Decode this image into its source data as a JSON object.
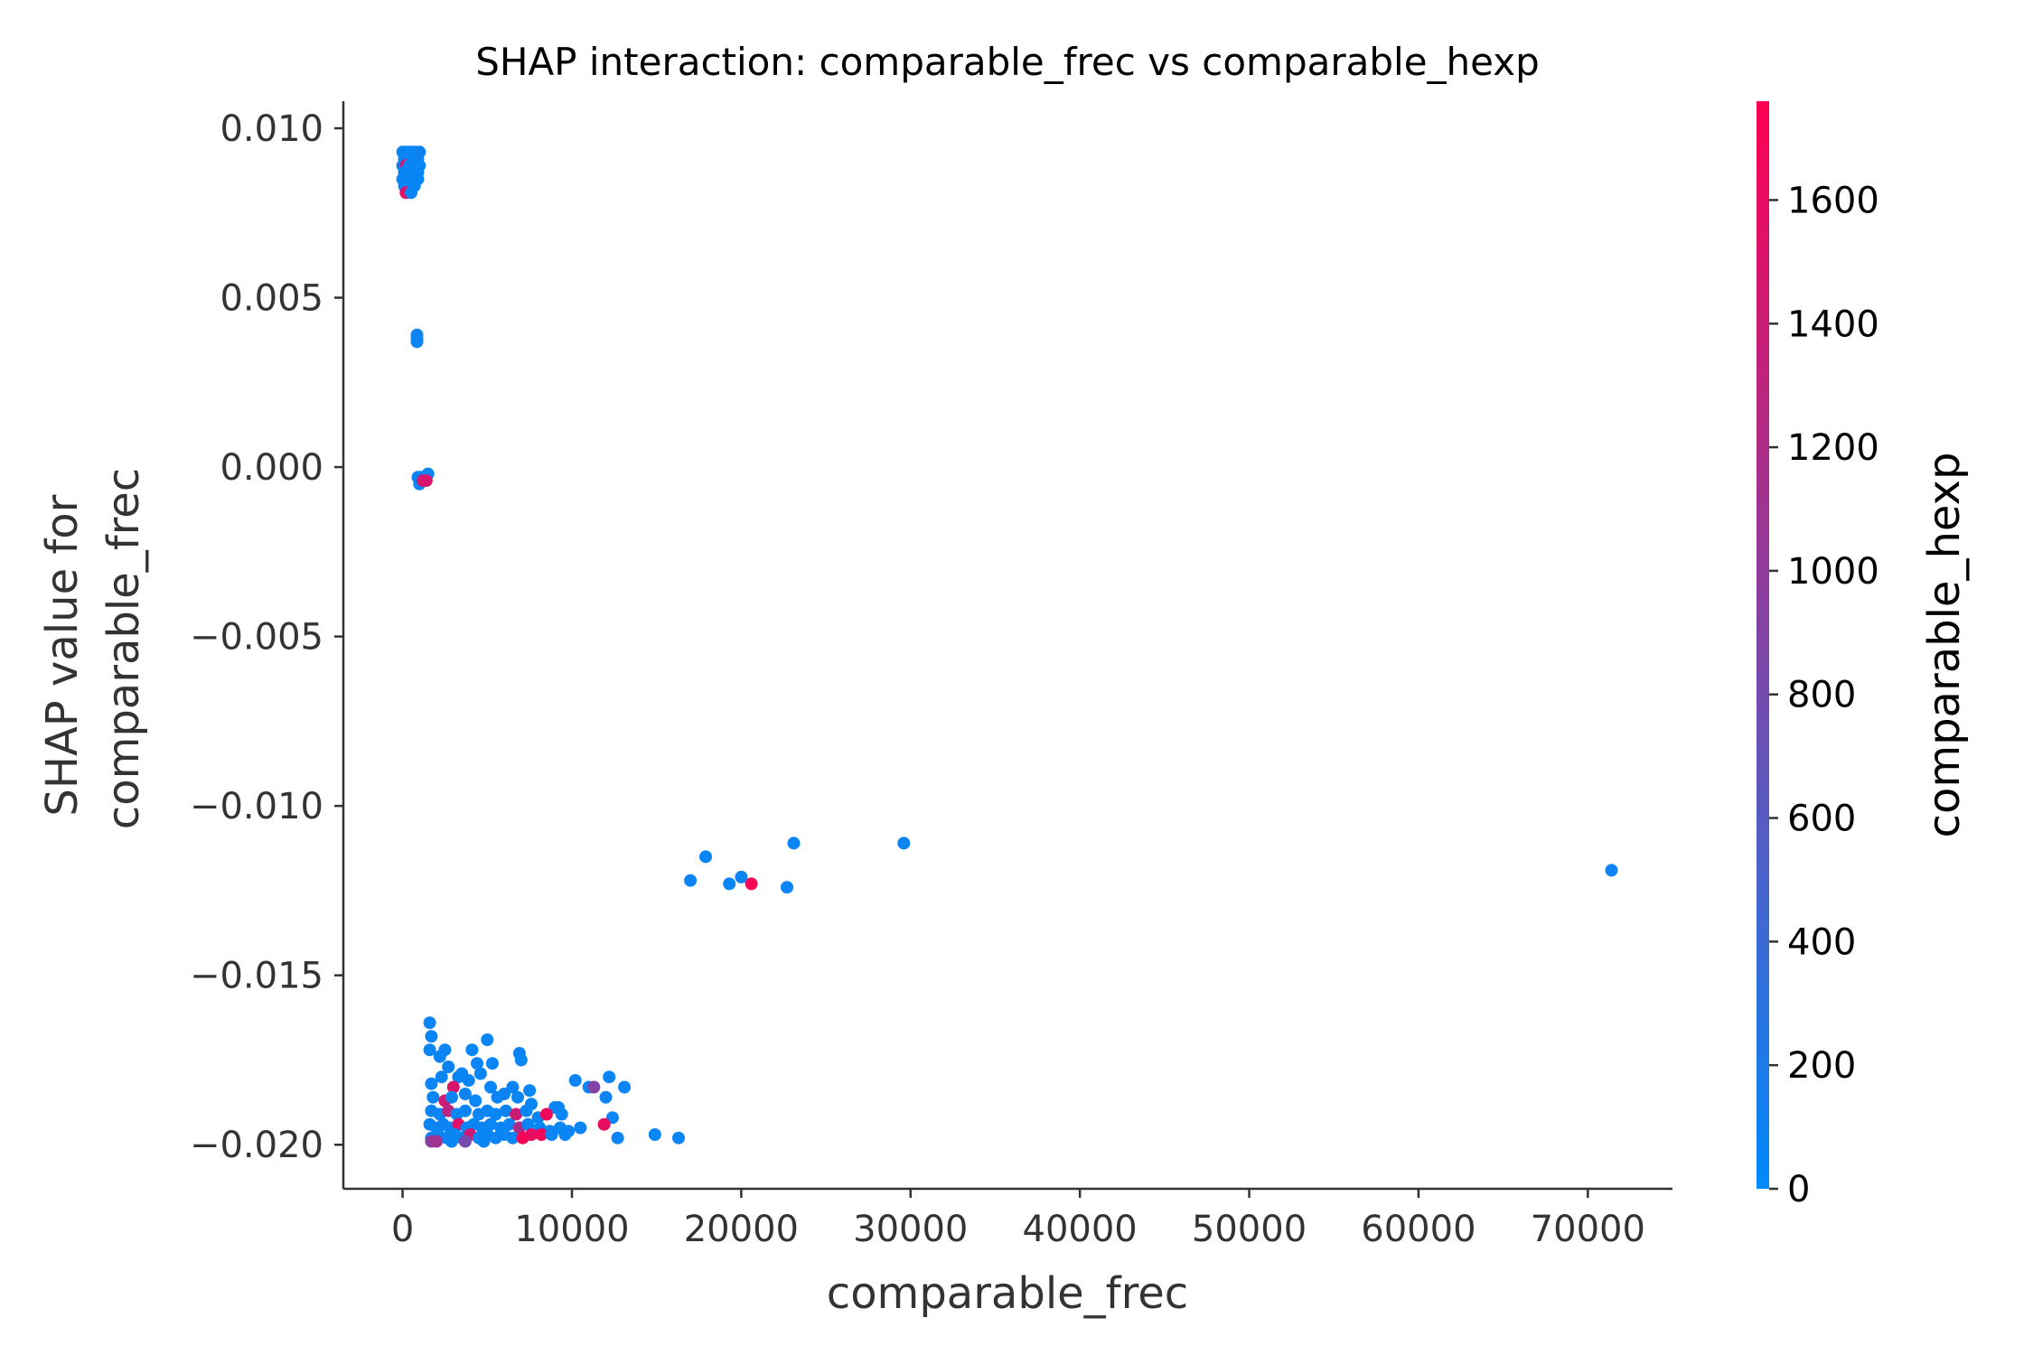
{
  "chart_data": {
    "type": "scatter",
    "title": "SHAP interaction: comparable_frec vs comparable_hexp",
    "xlabel": "comparable_frec",
    "ylabel_lines": [
      "SHAP value for",
      "comparable_frec"
    ],
    "xlim": [
      -3500,
      75000
    ],
    "ylim": [
      -0.0213,
      0.0108
    ],
    "xticks": [
      0,
      10000,
      20000,
      30000,
      40000,
      50000,
      60000,
      70000
    ],
    "xtick_labels": [
      "0",
      "10000",
      "20000",
      "30000",
      "40000",
      "50000",
      "60000",
      "70000"
    ],
    "yticks": [
      0.01,
      0.005,
      0.0,
      -0.005,
      -0.01,
      -0.015,
      -0.02
    ],
    "ytick_labels": [
      "0.010",
      "0.005",
      "0.000",
      "−0.005",
      "−0.010",
      "−0.015",
      "−0.020"
    ],
    "grid": false,
    "colorbar": {
      "label": "comparable_hexp",
      "range": [
        0,
        1760
      ],
      "ticks": [
        0,
        200,
        400,
        600,
        800,
        1000,
        1200,
        1400,
        1600
      ],
      "tick_labels": [
        "0",
        "200",
        "400",
        "600",
        "800",
        "1000",
        "1200",
        "1400",
        "1600"
      ],
      "colors": [
        "#008afb",
        "#ff0052"
      ]
    },
    "points": [
      {
        "x": 0,
        "y": 0.0093,
        "c": 60
      },
      {
        "x": 200,
        "y": 0.0093,
        "c": 80
      },
      {
        "x": 400,
        "y": 0.0093,
        "c": 50
      },
      {
        "x": 600,
        "y": 0.0093,
        "c": 70
      },
      {
        "x": 800,
        "y": 0.0093,
        "c": 60
      },
      {
        "x": 1000,
        "y": 0.0093,
        "c": 90
      },
      {
        "x": 100,
        "y": 0.0091,
        "c": 40
      },
      {
        "x": 300,
        "y": 0.0091,
        "c": 100
      },
      {
        "x": 500,
        "y": 0.0091,
        "c": 60
      },
      {
        "x": 700,
        "y": 0.0091,
        "c": 50
      },
      {
        "x": 900,
        "y": 0.0091,
        "c": 120
      },
      {
        "x": 0,
        "y": 0.0089,
        "c": 70
      },
      {
        "x": 200,
        "y": 0.0089,
        "c": 1500
      },
      {
        "x": 400,
        "y": 0.0089,
        "c": 60
      },
      {
        "x": 600,
        "y": 0.0089,
        "c": 80
      },
      {
        "x": 800,
        "y": 0.0089,
        "c": 50
      },
      {
        "x": 1000,
        "y": 0.0089,
        "c": 70
      },
      {
        "x": 100,
        "y": 0.0087,
        "c": 60
      },
      {
        "x": 300,
        "y": 0.0087,
        "c": 90
      },
      {
        "x": 500,
        "y": 0.0087,
        "c": 40
      },
      {
        "x": 700,
        "y": 0.0087,
        "c": 70
      },
      {
        "x": 900,
        "y": 0.0087,
        "c": 60
      },
      {
        "x": 0,
        "y": 0.0085,
        "c": 80
      },
      {
        "x": 300,
        "y": 0.0085,
        "c": 60
      },
      {
        "x": 600,
        "y": 0.0085,
        "c": 100
      },
      {
        "x": 900,
        "y": 0.0085,
        "c": 50
      },
      {
        "x": 100,
        "y": 0.0083,
        "c": 60
      },
      {
        "x": 400,
        "y": 0.0083,
        "c": 70
      },
      {
        "x": 700,
        "y": 0.0083,
        "c": 40
      },
      {
        "x": 200,
        "y": 0.0081,
        "c": 1600
      },
      {
        "x": 500,
        "y": 0.0081,
        "c": 60
      },
      {
        "x": 850,
        "y": 0.0039,
        "c": 80
      },
      {
        "x": 850,
        "y": 0.0038,
        "c": 60
      },
      {
        "x": 850,
        "y": 0.0037,
        "c": 70
      },
      {
        "x": 900,
        "y": -0.0003,
        "c": 80
      },
      {
        "x": 1100,
        "y": -0.0003,
        "c": 60
      },
      {
        "x": 1300,
        "y": -0.0003,
        "c": 90
      },
      {
        "x": 1500,
        "y": -0.0002,
        "c": 70
      },
      {
        "x": 1000,
        "y": -0.0005,
        "c": 50
      },
      {
        "x": 1200,
        "y": -0.0004,
        "c": 1400
      },
      {
        "x": 1400,
        "y": -0.0004,
        "c": 1500
      },
      {
        "x": 17000,
        "y": -0.0122,
        "c": 80
      },
      {
        "x": 17900,
        "y": -0.0115,
        "c": 60
      },
      {
        "x": 19300,
        "y": -0.0123,
        "c": 70
      },
      {
        "x": 20000,
        "y": -0.0121,
        "c": 90
      },
      {
        "x": 20600,
        "y": -0.0123,
        "c": 1700
      },
      {
        "x": 22700,
        "y": -0.0124,
        "c": 80
      },
      {
        "x": 23100,
        "y": -0.0111,
        "c": 60
      },
      {
        "x": 29600,
        "y": -0.0111,
        "c": 90
      },
      {
        "x": 71400,
        "y": -0.0119,
        "c": 80
      },
      {
        "x": 1600,
        "y": -0.0164,
        "c": 80
      },
      {
        "x": 1700,
        "y": -0.0168,
        "c": 60
      },
      {
        "x": 1600,
        "y": -0.0172,
        "c": 70
      },
      {
        "x": 2200,
        "y": -0.0174,
        "c": 60
      },
      {
        "x": 2500,
        "y": -0.0172,
        "c": 80
      },
      {
        "x": 2700,
        "y": -0.0177,
        "c": 90
      },
      {
        "x": 3300,
        "y": -0.018,
        "c": 70
      },
      {
        "x": 4100,
        "y": -0.0172,
        "c": 60
      },
      {
        "x": 4400,
        "y": -0.0176,
        "c": 80
      },
      {
        "x": 5000,
        "y": -0.0169,
        "c": 70
      },
      {
        "x": 5300,
        "y": -0.0176,
        "c": 60
      },
      {
        "x": 6900,
        "y": -0.0173,
        "c": 90
      },
      {
        "x": 7000,
        "y": -0.0175,
        "c": 70
      },
      {
        "x": 1700,
        "y": -0.0182,
        "c": 60
      },
      {
        "x": 2300,
        "y": -0.018,
        "c": 70
      },
      {
        "x": 3000,
        "y": -0.0183,
        "c": 1500
      },
      {
        "x": 3500,
        "y": -0.0179,
        "c": 60
      },
      {
        "x": 3900,
        "y": -0.0181,
        "c": 80
      },
      {
        "x": 4600,
        "y": -0.0179,
        "c": 70
      },
      {
        "x": 5200,
        "y": -0.0183,
        "c": 60
      },
      {
        "x": 6000,
        "y": -0.0185,
        "c": 90
      },
      {
        "x": 6500,
        "y": -0.0183,
        "c": 70
      },
      {
        "x": 7500,
        "y": -0.0184,
        "c": 60
      },
      {
        "x": 10200,
        "y": -0.0181,
        "c": 80
      },
      {
        "x": 11000,
        "y": -0.0183,
        "c": 60
      },
      {
        "x": 11300,
        "y": -0.0183,
        "c": 900
      },
      {
        "x": 12200,
        "y": -0.018,
        "c": 70
      },
      {
        "x": 13100,
        "y": -0.0183,
        "c": 60
      },
      {
        "x": 12000,
        "y": -0.0186,
        "c": 80
      },
      {
        "x": 1800,
        "y": -0.0186,
        "c": 60
      },
      {
        "x": 2500,
        "y": -0.0187,
        "c": 1400
      },
      {
        "x": 2900,
        "y": -0.0186,
        "c": 70
      },
      {
        "x": 3700,
        "y": -0.0185,
        "c": 90
      },
      {
        "x": 4300,
        "y": -0.0187,
        "c": 60
      },
      {
        "x": 5600,
        "y": -0.0186,
        "c": 80
      },
      {
        "x": 6800,
        "y": -0.0186,
        "c": 60
      },
      {
        "x": 7600,
        "y": -0.0188,
        "c": 70
      },
      {
        "x": 9000,
        "y": -0.0189,
        "c": 80
      },
      {
        "x": 9200,
        "y": -0.0189,
        "c": 60
      },
      {
        "x": 1700,
        "y": -0.019,
        "c": 80
      },
      {
        "x": 2200,
        "y": -0.0191,
        "c": 60
      },
      {
        "x": 2700,
        "y": -0.019,
        "c": 1300
      },
      {
        "x": 3200,
        "y": -0.0191,
        "c": 70
      },
      {
        "x": 3700,
        "y": -0.019,
        "c": 60
      },
      {
        "x": 4500,
        "y": -0.0191,
        "c": 80
      },
      {
        "x": 5000,
        "y": -0.019,
        "c": 70
      },
      {
        "x": 5500,
        "y": -0.0191,
        "c": 60
      },
      {
        "x": 6100,
        "y": -0.019,
        "c": 90
      },
      {
        "x": 6700,
        "y": -0.0191,
        "c": 1400
      },
      {
        "x": 7300,
        "y": -0.019,
        "c": 60
      },
      {
        "x": 8000,
        "y": -0.0192,
        "c": 80
      },
      {
        "x": 8500,
        "y": -0.0191,
        "c": 1650
      },
      {
        "x": 9400,
        "y": -0.0191,
        "c": 70
      },
      {
        "x": 12400,
        "y": -0.0192,
        "c": 60
      },
      {
        "x": 1600,
        "y": -0.0194,
        "c": 70
      },
      {
        "x": 2000,
        "y": -0.0195,
        "c": 60
      },
      {
        "x": 2400,
        "y": -0.0194,
        "c": 90
      },
      {
        "x": 2800,
        "y": -0.0195,
        "c": 80
      },
      {
        "x": 3300,
        "y": -0.0194,
        "c": 1550
      },
      {
        "x": 3800,
        "y": -0.0195,
        "c": 70
      },
      {
        "x": 4200,
        "y": -0.0194,
        "c": 60
      },
      {
        "x": 4700,
        "y": -0.0195,
        "c": 80
      },
      {
        "x": 5200,
        "y": -0.0194,
        "c": 70
      },
      {
        "x": 5800,
        "y": -0.0195,
        "c": 60
      },
      {
        "x": 6300,
        "y": -0.0194,
        "c": 80
      },
      {
        "x": 6900,
        "y": -0.0195,
        "c": 1200
      },
      {
        "x": 7400,
        "y": -0.0194,
        "c": 70
      },
      {
        "x": 8100,
        "y": -0.0195,
        "c": 60
      },
      {
        "x": 8700,
        "y": -0.0196,
        "c": 80
      },
      {
        "x": 9300,
        "y": -0.0195,
        "c": 70
      },
      {
        "x": 9800,
        "y": -0.0196,
        "c": 60
      },
      {
        "x": 10500,
        "y": -0.0195,
        "c": 80
      },
      {
        "x": 11900,
        "y": -0.0194,
        "c": 1600
      },
      {
        "x": 1700,
        "y": -0.0198,
        "c": 60
      },
      {
        "x": 2100,
        "y": -0.0197,
        "c": 80
      },
      {
        "x": 2600,
        "y": -0.0198,
        "c": 70
      },
      {
        "x": 3100,
        "y": -0.0197,
        "c": 60
      },
      {
        "x": 3500,
        "y": -0.0198,
        "c": 90
      },
      {
        "x": 4000,
        "y": -0.0197,
        "c": 1450
      },
      {
        "x": 4500,
        "y": -0.0198,
        "c": 70
      },
      {
        "x": 5000,
        "y": -0.0197,
        "c": 60
      },
      {
        "x": 5500,
        "y": -0.0198,
        "c": 80
      },
      {
        "x": 6000,
        "y": -0.0197,
        "c": 70
      },
      {
        "x": 6500,
        "y": -0.0198,
        "c": 60
      },
      {
        "x": 7100,
        "y": -0.0198,
        "c": 1700
      },
      {
        "x": 7600,
        "y": -0.0197,
        "c": 1600
      },
      {
        "x": 8200,
        "y": -0.0197,
        "c": 1650
      },
      {
        "x": 8800,
        "y": -0.0197,
        "c": 70
      },
      {
        "x": 9600,
        "y": -0.0197,
        "c": 60
      },
      {
        "x": 1700,
        "y": -0.0199,
        "c": 1000
      },
      {
        "x": 2000,
        "y": -0.0199,
        "c": 1100
      },
      {
        "x": 2900,
        "y": -0.0199,
        "c": 70
      },
      {
        "x": 3700,
        "y": -0.0199,
        "c": 800
      },
      {
        "x": 4800,
        "y": -0.0199,
        "c": 60
      },
      {
        "x": 12700,
        "y": -0.0198,
        "c": 80
      },
      {
        "x": 14900,
        "y": -0.0197,
        "c": 70
      },
      {
        "x": 16300,
        "y": -0.0198,
        "c": 60
      }
    ]
  }
}
